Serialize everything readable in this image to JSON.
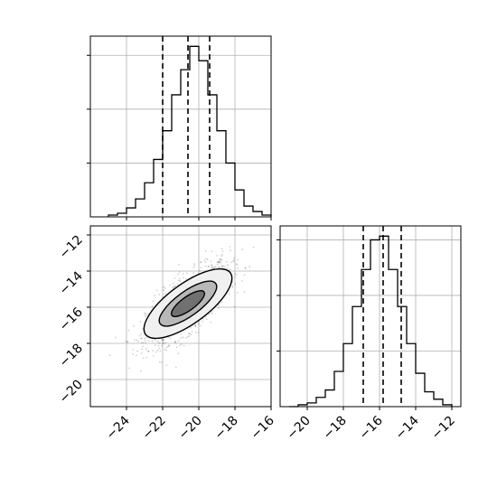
{
  "chart_data": [
    {
      "type": "histogram",
      "panel": "top-left",
      "variable": "x",
      "bins": [
        -25.0,
        -24.5,
        -24.0,
        -23.5,
        -23.0,
        -22.5,
        -22.0,
        -21.5,
        -21.0,
        -20.5,
        -20.0,
        -19.5,
        -19.0,
        -18.5,
        -18.0,
        -17.5,
        -17.0,
        -16.5,
        -16.0
      ],
      "counts": [
        1,
        2,
        5,
        10,
        19,
        32,
        48,
        68,
        82,
        95,
        87,
        68,
        48,
        30,
        15,
        6,
        3,
        1
      ],
      "quantiles": [
        -22.0,
        -20.6,
        -19.4
      ],
      "xlim": [
        -26,
        -16
      ],
      "xticks": [
        -24,
        -22,
        -20,
        -18,
        -16
      ],
      "grid": true,
      "tick_labels_shown": false
    },
    {
      "type": "scatter-density",
      "panel": "bottom-left",
      "x_label_text": "",
      "y_label_text": "",
      "xlim": [
        -26,
        -16
      ],
      "ylim": [
        -21.5,
        -11.5
      ],
      "xticks": [
        "−24",
        "−22",
        "−20",
        "−18",
        "−16"
      ],
      "yticks": [
        "−12",
        "−14",
        "−16",
        "−18",
        "−20"
      ],
      "xtick_values": [
        -24,
        -22,
        -20,
        -18,
        -16
      ],
      "ytick_values": [
        -12,
        -14,
        -16,
        -18,
        -20
      ],
      "center": [
        -20.6,
        -15.8
      ],
      "correlation": 0.72,
      "contours": [
        "outer",
        "middle",
        "inner"
      ],
      "grid": true
    },
    {
      "type": "histogram",
      "panel": "bottom-right",
      "variable": "y",
      "bins": [
        -21.0,
        -20.5,
        -20.0,
        -19.5,
        -19.0,
        -18.5,
        -18.0,
        -17.5,
        -17.0,
        -16.5,
        -16.0,
        -15.5,
        -15.0,
        -14.5,
        -14.0,
        -13.5,
        -13.0,
        -12.5,
        -12.0
      ],
      "counts": [
        0,
        1,
        2,
        5,
        9,
        19,
        34,
        54,
        74,
        90,
        92,
        74,
        54,
        34,
        18,
        8,
        4,
        1
      ],
      "quantiles": [
        -16.9,
        -15.8,
        -14.8
      ],
      "xlim": [
        -21.5,
        -11.5
      ],
      "xticks": [
        "−20",
        "−18",
        "−16",
        "−14",
        "−12"
      ],
      "xtick_values": [
        -20,
        -18,
        -16,
        -14,
        -12
      ],
      "grid": true
    }
  ]
}
